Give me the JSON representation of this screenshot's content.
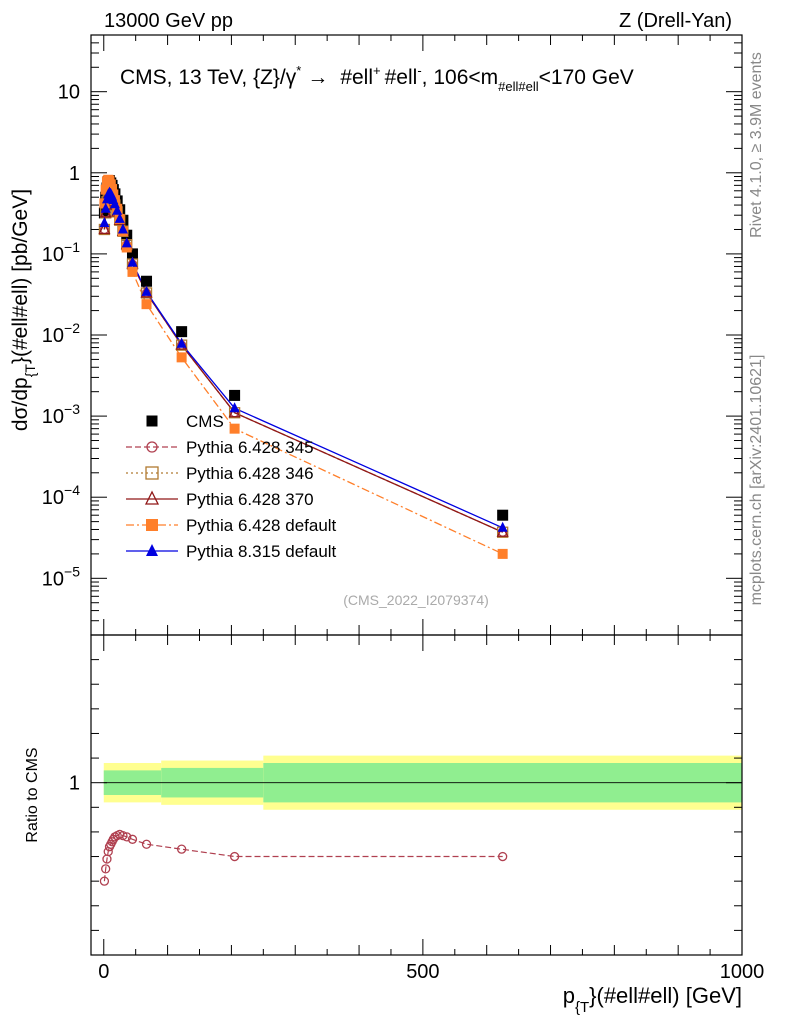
{
  "header": {
    "left": "13000 GeV pp",
    "right": "Z (Drell-Yan)"
  },
  "side_text": {
    "rivet": "Rivet 4.1.0, ≥ 3.9M events",
    "mcplots": "mcplots.cern.ch [arXiv:2401.10621]"
  },
  "watermark": "(CMS_2022_I2079374)",
  "colors": {
    "cms": "#000000",
    "p345": "#b04050",
    "p346": "#b07a30",
    "p370": "#901818",
    "p428def": "#ff7f2a",
    "p8def": "#0000e0",
    "band_inner": "#90ee90",
    "band_outer": "#ffff90"
  },
  "chart_data": [
    {
      "type": "scatter",
      "title": "CMS, 13 TeV, {Z}/γ* → #ell⁺ #ell⁻, 106<m_{#ell#ell}<170 GeV",
      "title_parts": {
        "prefix": "CMS, 13 TeV, {Z}/γ",
        "star": "*",
        "arrow": "→",
        "ell1": "#ell",
        "plus": "+",
        "ell2": "#ell",
        "minus": "-",
        "range_a": ", 106<m",
        "sub": "#ell#ell",
        "range_b": "<170 GeV"
      },
      "ylabel": "dσ/dp_{T}(#ell#ell) [pb/GeV]",
      "ylabel_parts": {
        "a": "dσ/dp",
        "sub": "{T",
        "b": "}(#ell#ell) [pb/GeV]"
      },
      "yscale": "log",
      "ylim": [
        2e-06,
        50
      ],
      "xlim": [
        -20,
        1000
      ],
      "y_ticks": [
        {
          "value": 10,
          "label": "10"
        },
        {
          "value": 1,
          "label": "1"
        },
        {
          "value": 0.1,
          "label": "10",
          "exp": "−1"
        },
        {
          "value": 0.01,
          "label": "10",
          "exp": "−2"
        },
        {
          "value": 0.001,
          "label": "10",
          "exp": "−3"
        },
        {
          "value": 0.0001,
          "label": "10",
          "exp": "−4"
        },
        {
          "value": 1e-05,
          "label": "10",
          "exp": "−5"
        }
      ],
      "legend_position": "bottom-left",
      "series": [
        {
          "key": "cms",
          "name": "CMS",
          "marker": "square",
          "line": "none",
          "x": [
            1,
            3,
            5,
            7,
            9,
            11,
            13,
            15,
            17.5,
            21,
            25,
            30,
            36,
            45,
            67,
            122,
            205,
            625
          ],
          "y": [
            0.32,
            0.5,
            0.65,
            0.78,
            0.8,
            0.75,
            0.7,
            0.62,
            0.55,
            0.45,
            0.35,
            0.26,
            0.17,
            0.1,
            0.046,
            0.011,
            0.0018,
            6e-05
          ]
        },
        {
          "key": "p345",
          "name": "Pythia 6.428 345",
          "marker": "circle-open",
          "line": "dashed",
          "x": [
            1,
            3,
            5,
            7,
            9,
            11,
            13,
            15,
            17.5,
            21,
            25,
            30,
            36,
            45,
            67,
            122,
            205,
            625
          ],
          "y": [
            0.2,
            0.32,
            0.44,
            0.53,
            0.56,
            0.54,
            0.5,
            0.45,
            0.4,
            0.33,
            0.26,
            0.19,
            0.13,
            0.075,
            0.033,
            0.0075,
            0.0011,
            3.7e-05
          ]
        },
        {
          "key": "p346",
          "name": "Pythia 6.428 346",
          "marker": "square-open",
          "line": "dotted",
          "x": [
            1,
            3,
            5,
            7,
            9,
            11,
            13,
            15,
            17.5,
            21,
            25,
            30,
            36,
            45,
            67,
            122,
            205,
            625
          ],
          "y": [
            0.2,
            0.32,
            0.44,
            0.53,
            0.56,
            0.54,
            0.5,
            0.45,
            0.4,
            0.33,
            0.26,
            0.19,
            0.13,
            0.075,
            0.033,
            0.0075,
            0.0011,
            3.7e-05
          ]
        },
        {
          "key": "p370",
          "name": "Pythia 6.428 370",
          "marker": "triangle-open",
          "line": "solid",
          "x": [
            1,
            3,
            5,
            7,
            9,
            11,
            13,
            15,
            17.5,
            21,
            25,
            30,
            36,
            45,
            67,
            122,
            205,
            625
          ],
          "y": [
            0.2,
            0.32,
            0.44,
            0.53,
            0.56,
            0.54,
            0.5,
            0.45,
            0.4,
            0.33,
            0.26,
            0.19,
            0.13,
            0.075,
            0.033,
            0.0075,
            0.0011,
            3.7e-05
          ]
        },
        {
          "key": "p428def",
          "name": "Pythia 6.428 default",
          "marker": "square",
          "line": "dashdot",
          "x": [
            1,
            3,
            5,
            7,
            9,
            11,
            13,
            15,
            17.5,
            21,
            25,
            30,
            36,
            45,
            67,
            122,
            205,
            625
          ],
          "y": [
            0.42,
            0.62,
            0.78,
            0.82,
            0.8,
            0.72,
            0.63,
            0.54,
            0.46,
            0.36,
            0.27,
            0.19,
            0.12,
            0.06,
            0.024,
            0.0053,
            0.0007,
            2e-05
          ]
        },
        {
          "key": "p8def",
          "name": "Pythia 8.315 default",
          "marker": "triangle",
          "line": "solid",
          "x": [
            1,
            3,
            5,
            7,
            9,
            11,
            13,
            15,
            17.5,
            21,
            25,
            30,
            36,
            45,
            67,
            122,
            205,
            625
          ],
          "y": [
            0.24,
            0.36,
            0.47,
            0.54,
            0.57,
            0.55,
            0.51,
            0.46,
            0.41,
            0.34,
            0.27,
            0.2,
            0.135,
            0.078,
            0.034,
            0.0078,
            0.00125,
            4.2e-05
          ]
        }
      ]
    },
    {
      "type": "line",
      "ylabel": "Ratio to CMS",
      "xlabel": "p_{T}(#ell#ell) [GeV]",
      "xlabel_parts": {
        "a": "p",
        "sub": "{T",
        "b": "}(#ell#ell) [GeV]"
      },
      "xlim": [
        -20,
        1000
      ],
      "ylim": [
        0.3,
        1.6
      ],
      "x_ticks": [
        {
          "value": 0,
          "label": "0"
        },
        {
          "value": 500,
          "label": "500"
        },
        {
          "value": 1000,
          "label": "1000"
        }
      ],
      "y_ticks": [
        {
          "value": 1,
          "label": "1"
        }
      ],
      "band": {
        "segments": [
          {
            "x0": 0,
            "x1": 90,
            "inner": 0.05,
            "outer": 0.08
          },
          {
            "x0": 90,
            "x1": 250,
            "inner": 0.06,
            "outer": 0.09
          },
          {
            "x0": 250,
            "x1": 1000,
            "inner": 0.08,
            "outer": 0.11
          }
        ]
      },
      "series": [
        {
          "key": "p345",
          "name": "Pythia 6.428 345 / CMS",
          "marker": "circle-open",
          "line": "dashed",
          "x": [
            1,
            3,
            5,
            7,
            9,
            11,
            13,
            15,
            17.5,
            21,
            25,
            30,
            36,
            45,
            67,
            122,
            205,
            625
          ],
          "y": [
            0.6,
            0.65,
            0.69,
            0.72,
            0.74,
            0.75,
            0.76,
            0.77,
            0.78,
            0.785,
            0.79,
            0.785,
            0.78,
            0.77,
            0.75,
            0.73,
            0.7,
            0.7
          ]
        }
      ]
    }
  ]
}
